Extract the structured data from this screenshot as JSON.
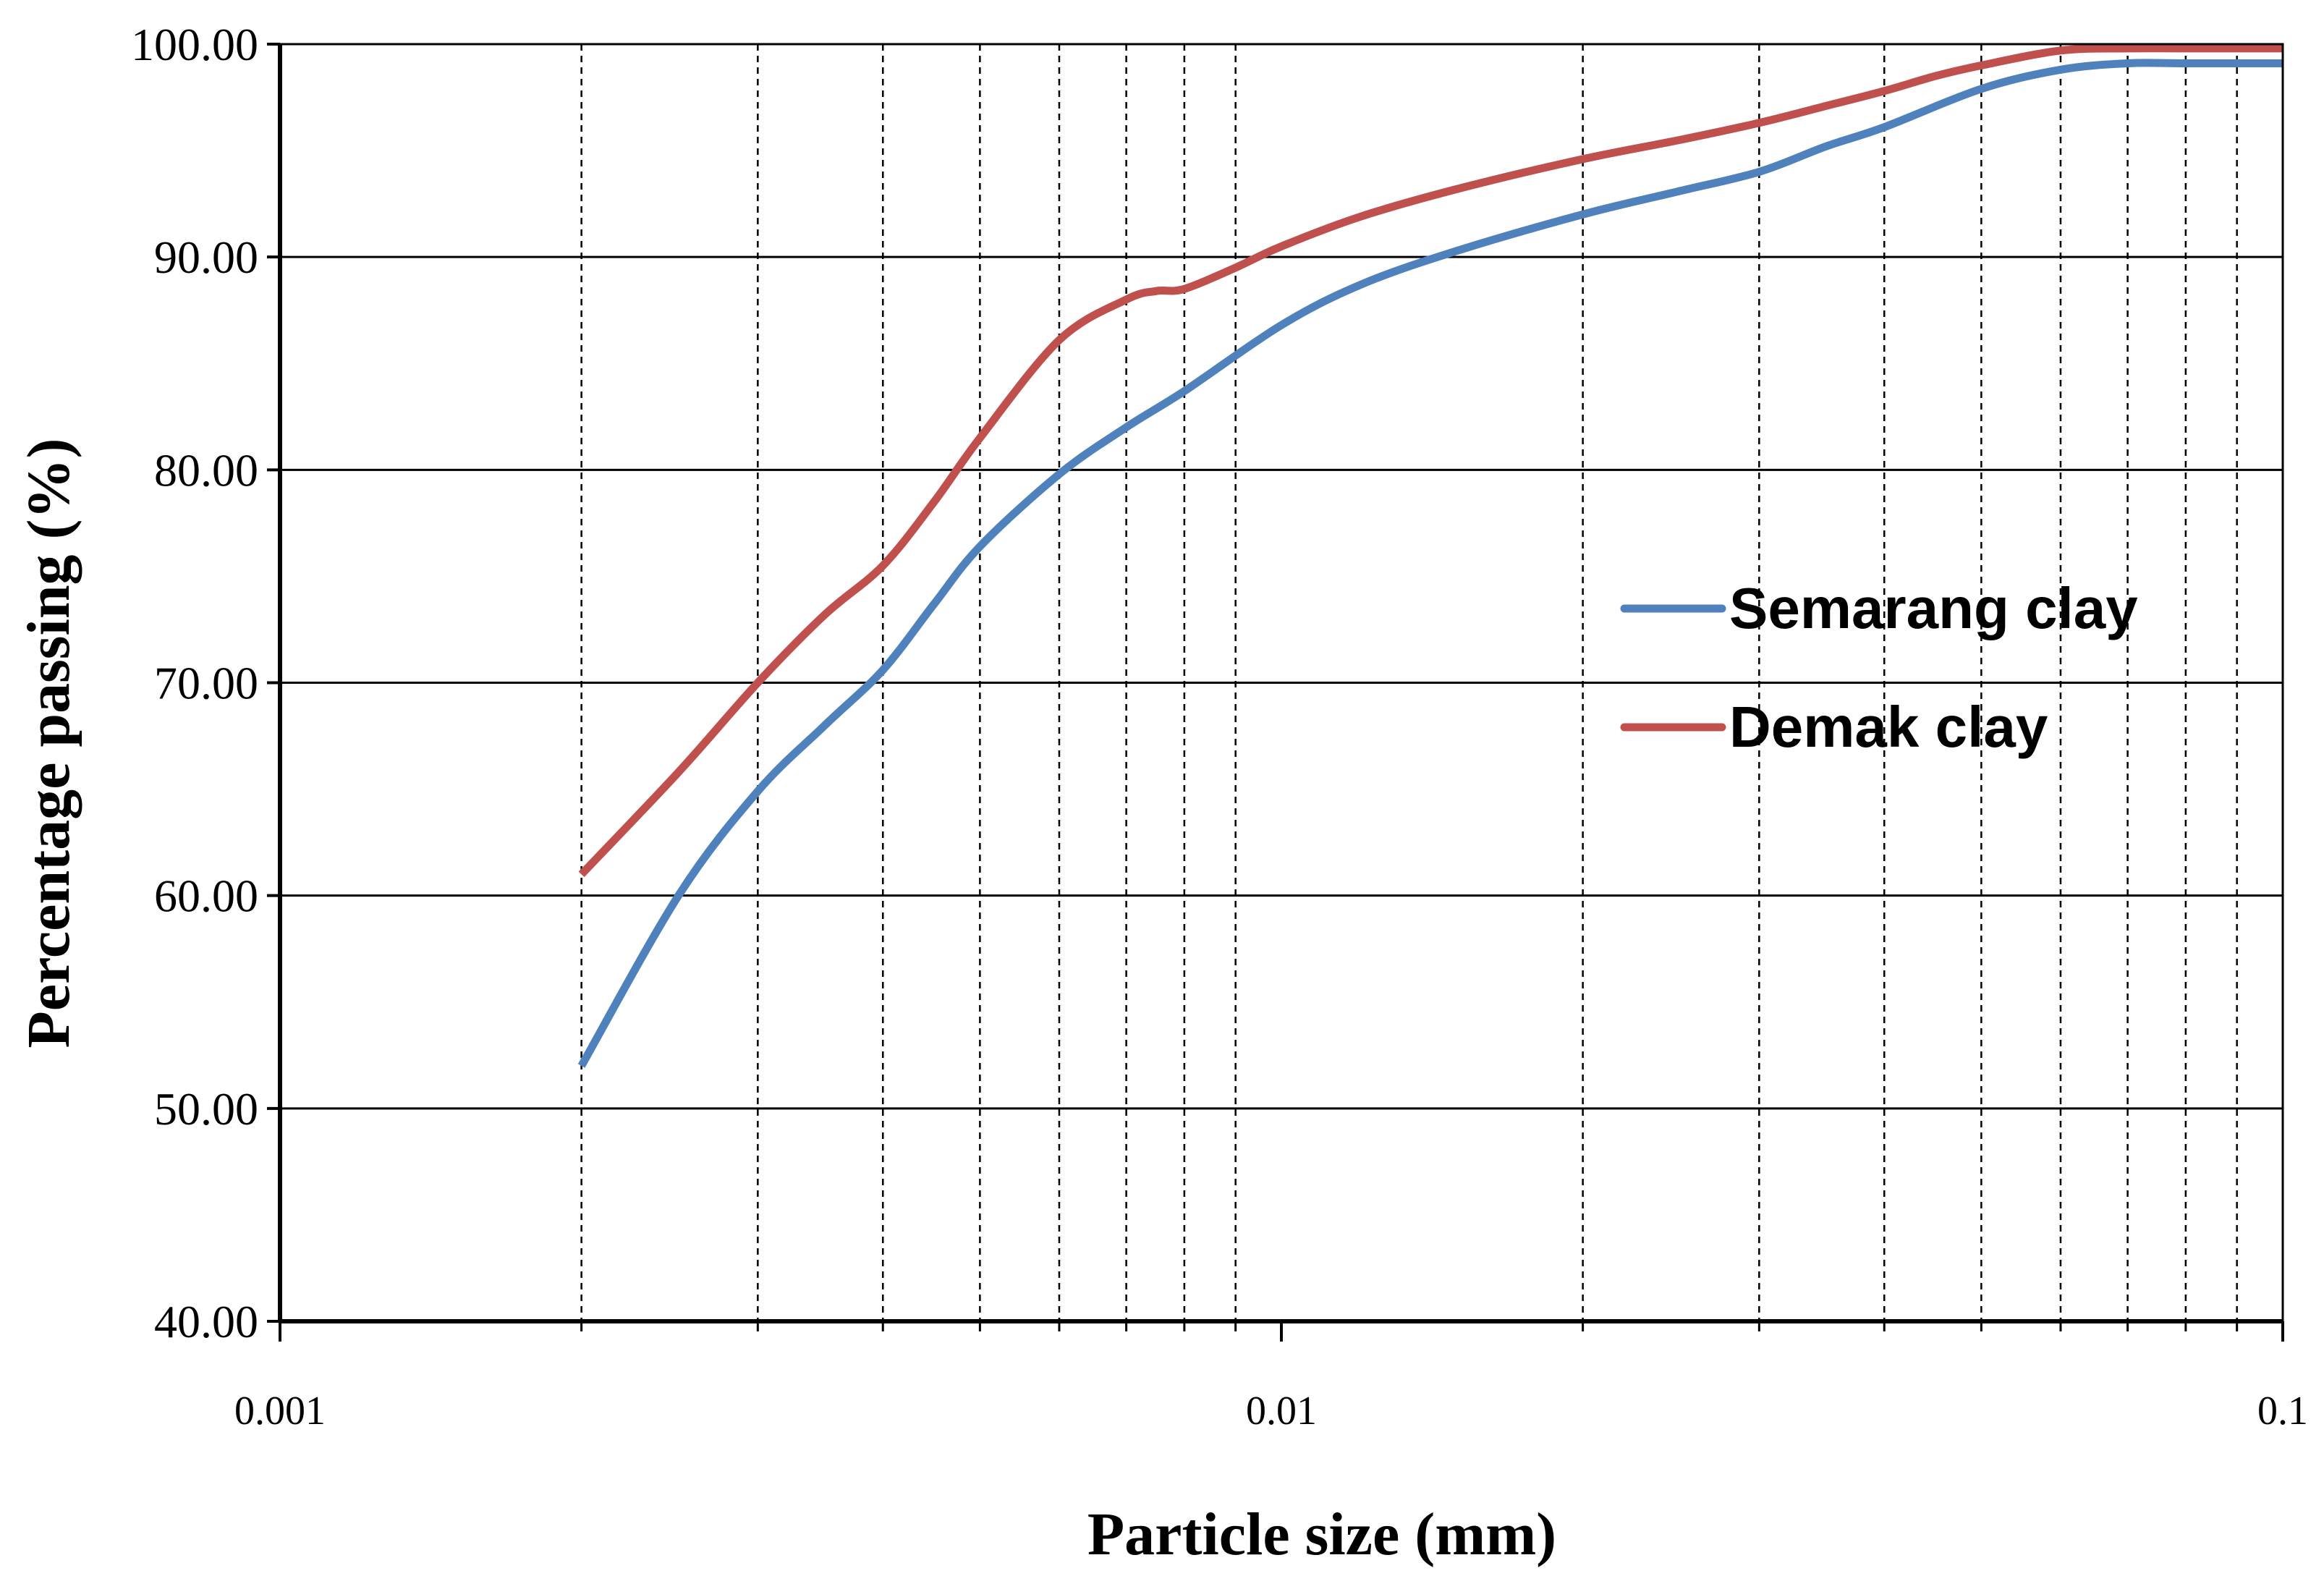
{
  "chart_data": {
    "type": "line",
    "x_scale": "log",
    "xlabel": "Particle size (mm)",
    "ylabel": "Percentage passing (%)",
    "xlim": [
      0.001,
      0.1
    ],
    "ylim": [
      40,
      100
    ],
    "x_ticks": [
      {
        "value": 0.001,
        "label": "0.001"
      },
      {
        "value": 0.01,
        "label": "0.01"
      },
      {
        "value": 0.1,
        "label": "0.1"
      }
    ],
    "y_ticks": [
      {
        "value": 40,
        "label": "40.00"
      },
      {
        "value": 50,
        "label": "50.00"
      },
      {
        "value": 60,
        "label": "60.00"
      },
      {
        "value": 70,
        "label": "70.00"
      },
      {
        "value": 80,
        "label": "80.00"
      },
      {
        "value": 90,
        "label": "90.00"
      },
      {
        "value": 100,
        "label": "100.00"
      }
    ],
    "vertical_gridlines": [
      0.002,
      0.003,
      0.004,
      0.005,
      0.006,
      0.007,
      0.008,
      0.009,
      0.02,
      0.03,
      0.04,
      0.05,
      0.06,
      0.07,
      0.08,
      0.09
    ],
    "grid": {
      "horizontal": "solid",
      "vertical": "dashed"
    },
    "legend_position": "right-middle",
    "series": [
      {
        "name": "Semarang clay",
        "color": "#4f81bd",
        "x": [
          0.002,
          0.0025,
          0.003,
          0.0035,
          0.004,
          0.0045,
          0.005,
          0.006,
          0.007,
          0.008,
          0.01,
          0.012,
          0.015,
          0.02,
          0.025,
          0.03,
          0.035,
          0.04,
          0.05,
          0.06,
          0.07,
          0.08,
          0.1
        ],
        "y": [
          52.0,
          60.0,
          64.9,
          68.0,
          70.6,
          73.7,
          76.4,
          79.8,
          82.0,
          83.7,
          86.8,
          88.7,
          90.3,
          92.0,
          93.1,
          94.0,
          95.2,
          96.1,
          97.9,
          98.8,
          99.1,
          99.1,
          99.1
        ]
      },
      {
        "name": "Demak clay",
        "color": "#c0504d",
        "x": [
          0.002,
          0.0025,
          0.003,
          0.0035,
          0.004,
          0.0045,
          0.005,
          0.006,
          0.007,
          0.0075,
          0.008,
          0.009,
          0.01,
          0.012,
          0.015,
          0.02,
          0.025,
          0.03,
          0.035,
          0.04,
          0.045,
          0.05,
          0.06,
          0.07,
          0.08,
          0.1
        ],
        "y": [
          61.0,
          65.8,
          70.0,
          73.2,
          75.5,
          78.5,
          81.5,
          86.1,
          88.0,
          88.4,
          88.5,
          89.5,
          90.5,
          91.9,
          93.2,
          94.6,
          95.5,
          96.3,
          97.1,
          97.8,
          98.5,
          99.0,
          99.7,
          99.8,
          99.8,
          99.8
        ]
      }
    ]
  }
}
